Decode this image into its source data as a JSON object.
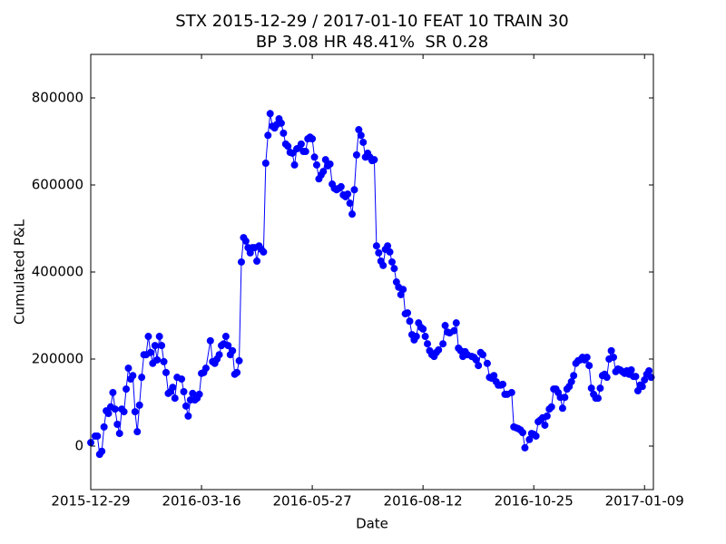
{
  "chart_data": {
    "type": "line",
    "title": "STX 2015-12-29 / 2017-01-10 FEAT 10 TRAIN 30",
    "subtitle": "BP 3.08 HR 48.41%  SR 0.28",
    "xlabel": "Date",
    "ylabel": "Cumulated P&L",
    "color": "#0000ff",
    "markers": true,
    "grid": false,
    "xlim": [
      0,
      254
    ],
    "ylim": [
      -100000,
      900000
    ],
    "xticks": [
      {
        "value": 0,
        "label": "2015-12-29"
      },
      {
        "value": 50,
        "label": "2016-03-16"
      },
      {
        "value": 100,
        "label": "2016-05-27"
      },
      {
        "value": 150,
        "label": "2016-08-12"
      },
      {
        "value": 200,
        "label": "2016-10-25"
      },
      {
        "value": 250,
        "label": "2017-01-09"
      }
    ],
    "yticks": [
      0,
      200000,
      400000,
      600000,
      800000
    ],
    "x": [
      0,
      2,
      3,
      4,
      5,
      6,
      7,
      8,
      9,
      10,
      11,
      12,
      13,
      14,
      15,
      16,
      17,
      18,
      19,
      20,
      21,
      22,
      23,
      24,
      25,
      26,
      27,
      28,
      29,
      30,
      31,
      32,
      33,
      34,
      35,
      36,
      37,
      38,
      39,
      41,
      42,
      43,
      44,
      45,
      46,
      47,
      48,
      49,
      50,
      51,
      52,
      54,
      55,
      56,
      57,
      58,
      59,
      60,
      61,
      62,
      63,
      64,
      65,
      66,
      67,
      68,
      69,
      70,
      71,
      72,
      73,
      74,
      75,
      76,
      77,
      78,
      79,
      80,
      81,
      82,
      83,
      84,
      85,
      86,
      87,
      88,
      89,
      90,
      91,
      92,
      93,
      94,
      95,
      96,
      97,
      98,
      99,
      100,
      101,
      102,
      103,
      104,
      105,
      106,
      107,
      108,
      109,
      110,
      111,
      112,
      113,
      114,
      115,
      116,
      117,
      118,
      119,
      120,
      121,
      122,
      123,
      124,
      125,
      126,
      127,
      128,
      129,
      130,
      131,
      132,
      133,
      134,
      135,
      136,
      137,
      138,
      139,
      140,
      141,
      142,
      143,
      144,
      145,
      146,
      147,
      148,
      149,
      150,
      151,
      152,
      153,
      154,
      155,
      156,
      157,
      159,
      160,
      161,
      162,
      164,
      165,
      166,
      167,
      168,
      169,
      170,
      172,
      173,
      174,
      175,
      176,
      177,
      179,
      180,
      181,
      182,
      183,
      184,
      185,
      186,
      187,
      188,
      190,
      191,
      192,
      193,
      194,
      195,
      196,
      198,
      199,
      200,
      201,
      202,
      203,
      204,
      205,
      206,
      207,
      208,
      209,
      210,
      211,
      212,
      213,
      214,
      215,
      216,
      217,
      218,
      219,
      220,
      221,
      222,
      223,
      224,
      225,
      226,
      227,
      228,
      229,
      230,
      231,
      232,
      233,
      234,
      235,
      236,
      237,
      238,
      239,
      240,
      241,
      242,
      243,
      244,
      245,
      246,
      247,
      248,
      249,
      250,
      251,
      252,
      253
    ],
    "values": [
      8000,
      23000,
      23000,
      -19000,
      -12000,
      44000,
      81000,
      75000,
      90000,
      123000,
      85000,
      50000,
      29000,
      85000,
      79000,
      131000,
      179000,
      154000,
      162000,
      79000,
      33000,
      94000,
      158000,
      210000,
      210000,
      252000,
      215000,
      190000,
      231000,
      198000,
      252000,
      231000,
      194000,
      169000,
      121000,
      125000,
      135000,
      110000,
      158000,
      154000,
      125000,
      92000,
      69000,
      106000,
      121000,
      106000,
      110000,
      119000,
      167000,
      169000,
      179000,
      242000,
      194000,
      190000,
      200000,
      210000,
      231000,
      235000,
      252000,
      231000,
      210000,
      219000,
      165000,
      169000,
      196000,
      423000,
      479000,
      471000,
      456000,
      444000,
      456000,
      456000,
      425000,
      460000,
      452000,
      446000,
      650000,
      714000,
      764000,
      735000,
      731000,
      739000,
      752000,
      742000,
      719000,
      694000,
      689000,
      675000,
      673000,
      646000,
      683000,
      685000,
      694000,
      677000,
      677000,
      706000,
      710000,
      706000,
      664000,
      646000,
      614000,
      623000,
      631000,
      658000,
      644000,
      648000,
      602000,
      592000,
      589000,
      592000,
      596000,
      577000,
      573000,
      579000,
      558000,
      533000,
      589000,
      669000,
      727000,
      714000,
      698000,
      664000,
      673000,
      664000,
      656000,
      658000,
      460000,
      444000,
      425000,
      415000,
      452000,
      460000,
      446000,
      423000,
      408000,
      377000,
      365000,
      348000,
      360000,
      304000,
      306000,
      287000,
      256000,
      244000,
      252000,
      283000,
      273000,
      269000,
      252000,
      235000,
      219000,
      210000,
      206000,
      215000,
      221000,
      235000,
      277000,
      262000,
      260000,
      265000,
      283000,
      225000,
      219000,
      206000,
      217000,
      210000,
      206000,
      204000,
      198000,
      185000,
      215000,
      210000,
      190000,
      158000,
      156000,
      162000,
      148000,
      140000,
      140000,
      142000,
      119000,
      119000,
      123000,
      44000,
      42000,
      40000,
      37000,
      31000,
      -4000,
      15000,
      29000,
      27000,
      23000,
      56000,
      60000,
      65000,
      48000,
      69000,
      85000,
      90000,
      131000,
      131000,
      123000,
      112000,
      87000,
      112000,
      131000,
      137000,
      148000,
      162000,
      190000,
      196000,
      198000,
      204000,
      198000,
      204000,
      185000,
      133000,
      119000,
      110000,
      110000,
      133000,
      162000,
      165000,
      158000,
      200000,
      219000,
      204000,
      171000,
      177000,
      175000,
      171000,
      167000,
      173000,
      165000,
      175000,
      160000,
      160000,
      127000,
      140000,
      137000,
      152000,
      165000,
      173000,
      158000
    ]
  }
}
